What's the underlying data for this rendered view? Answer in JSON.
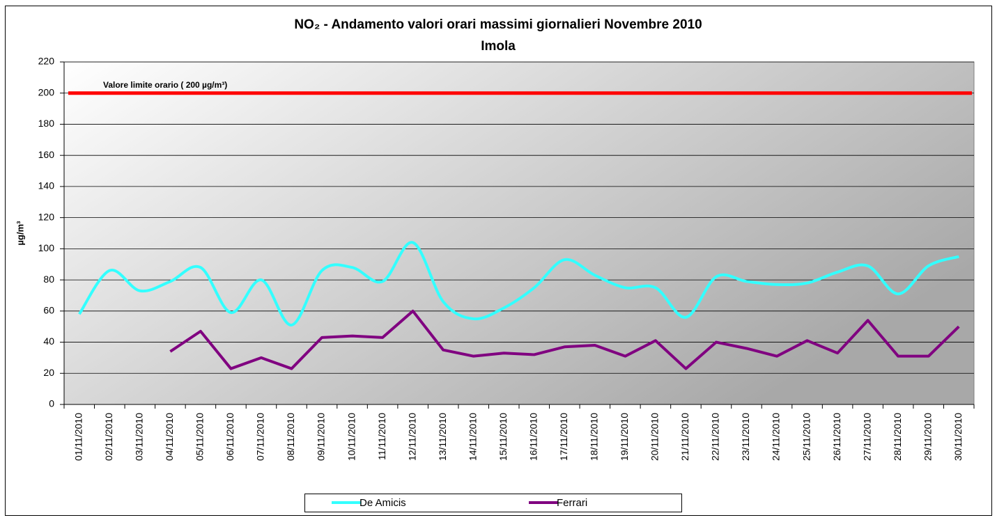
{
  "chart_data": {
    "type": "line",
    "title": "NO₂ - Andamento valori orari massimi giornalieri Novembre 2010",
    "subtitle": "Imola",
    "y_label": "µg/m³",
    "categories": [
      "01/11/2010",
      "02/11/2010",
      "03/11/2010",
      "04/11/2010",
      "05/11/2010",
      "06/11/2010",
      "07/11/2010",
      "08/11/2010",
      "09/11/2010",
      "10/11/2010",
      "11/11/2010",
      "12/11/2010",
      "13/11/2010",
      "14/11/2010",
      "15/11/2010",
      "16/11/2010",
      "17/11/2010",
      "18/11/2010",
      "19/11/2010",
      "20/11/2010",
      "21/11/2010",
      "22/11/2010",
      "23/11/2010",
      "24/11/2010",
      "25/11/2010",
      "26/11/2010",
      "27/11/2010",
      "28/11/2010",
      "29/11/2010",
      "30/11/2010"
    ],
    "series": [
      {
        "name": "De Amicis",
        "color": "#33ffff",
        "smooth": true,
        "values": [
          58,
          86,
          73,
          79,
          88,
          59,
          80,
          51,
          86,
          88,
          79,
          104,
          66,
          55,
          62,
          75,
          93,
          83,
          75,
          75,
          56,
          82,
          79,
          77,
          78,
          85,
          89,
          71,
          89,
          95
        ]
      },
      {
        "name": "Ferrari",
        "color": "#800080",
        "smooth": false,
        "values": [
          null,
          null,
          null,
          34,
          47,
          23,
          30,
          23,
          43,
          44,
          43,
          60,
          35,
          31,
          33,
          32,
          37,
          38,
          31,
          41,
          23,
          40,
          36,
          31,
          41,
          33,
          54,
          31,
          31,
          50
        ]
      }
    ],
    "limit": {
      "label": "Valore limite orario ( 200 µg/m³)",
      "value": 200,
      "color": "#ff0000"
    },
    "ylim": [
      0,
      220
    ],
    "yticks": [
      0,
      20,
      40,
      60,
      80,
      100,
      120,
      140,
      160,
      180,
      200,
      220
    ],
    "grid": true,
    "legend": "bottom"
  }
}
